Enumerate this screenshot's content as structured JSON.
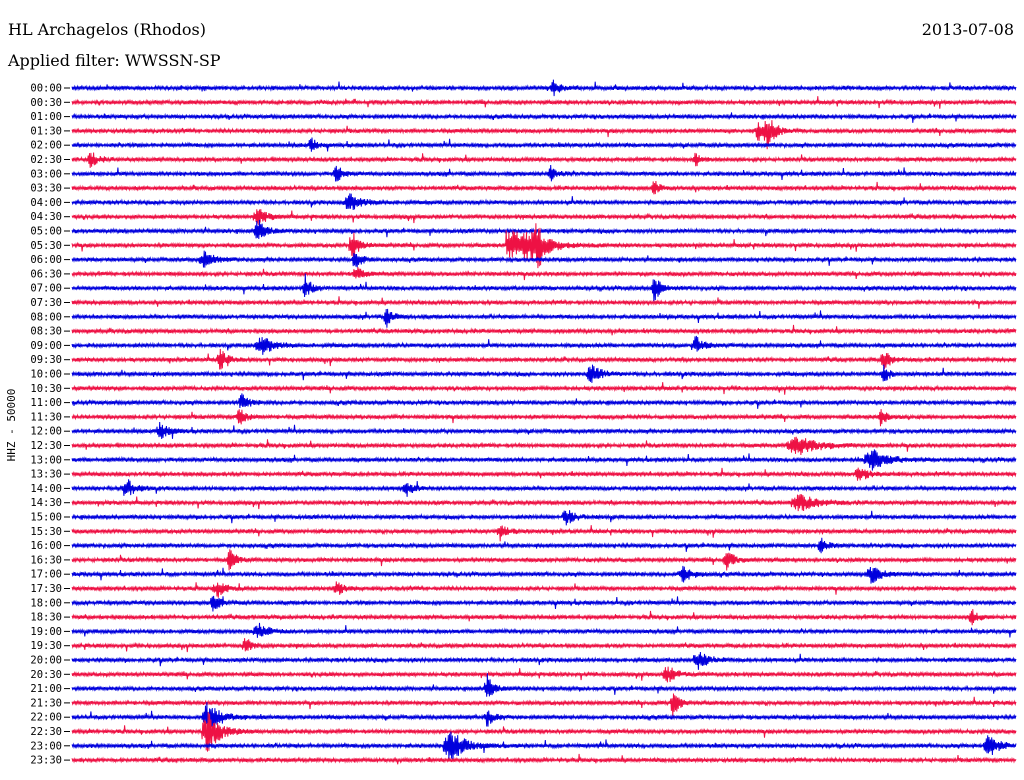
{
  "header": {
    "station": "HL Archagelos (Rhodos)",
    "date": "2013-07-08",
    "filter": "Applied filter: WWSSN-SP"
  },
  "chart_data": {
    "type": "line",
    "variant": "helicorder",
    "ylabel": "HHZ - 50000",
    "row_labels": [
      "00:00",
      "00:30",
      "01:00",
      "01:30",
      "02:00",
      "02:30",
      "03:00",
      "03:30",
      "04:00",
      "04:30",
      "05:00",
      "05:30",
      "06:00",
      "06:30",
      "07:00",
      "07:30",
      "08:00",
      "08:30",
      "09:00",
      "09:30",
      "10:00",
      "10:30",
      "11:00",
      "11:30",
      "12:00",
      "12:30",
      "13:00",
      "13:30",
      "14:00",
      "14:30",
      "15:00",
      "15:30",
      "16:00",
      "16:30",
      "17:00",
      "17:30",
      "18:00",
      "18:30",
      "19:00",
      "19:30",
      "20:00",
      "20:30",
      "21:00",
      "21:30",
      "22:00",
      "22:30",
      "23:00",
      "23:30"
    ],
    "colors": [
      "#0000dd",
      "#ee1144"
    ],
    "minutes_per_row": 30,
    "events": [
      {
        "row": 0,
        "minute": 15.3,
        "amplitude": 9,
        "duration": 0.6
      },
      {
        "row": 3,
        "minute": 22.1,
        "amplitude": 16,
        "duration": 0.8
      },
      {
        "row": 3,
        "minute": 21.8,
        "amplitude": 10,
        "duration": 0.5
      },
      {
        "row": 4,
        "minute": 7.6,
        "amplitude": 8,
        "duration": 0.5
      },
      {
        "row": 5,
        "minute": 0.6,
        "amplitude": 9,
        "duration": 0.6
      },
      {
        "row": 5,
        "minute": 19.8,
        "amplitude": 8,
        "duration": 0.5
      },
      {
        "row": 6,
        "minute": 8.4,
        "amplitude": 9,
        "duration": 0.6
      },
      {
        "row": 6,
        "minute": 15.2,
        "amplitude": 10,
        "duration": 0.6
      },
      {
        "row": 7,
        "minute": 18.5,
        "amplitude": 8,
        "duration": 0.5
      },
      {
        "row": 8,
        "minute": 8.8,
        "amplitude": 9,
        "duration": 1.2
      },
      {
        "row": 9,
        "minute": 5.9,
        "amplitude": 9,
        "duration": 0.8
      },
      {
        "row": 10,
        "minute": 5.9,
        "amplitude": 12,
        "duration": 0.8
      },
      {
        "row": 11,
        "minute": 8.9,
        "amplitude": 14,
        "duration": 0.7
      },
      {
        "row": 11,
        "minute": 14.9,
        "amplitude": 11,
        "duration": 1.6
      },
      {
        "row": 12,
        "minute": 9.0,
        "amplitude": 12,
        "duration": 0.6
      },
      {
        "row": 12,
        "minute": 4.2,
        "amplitude": 8,
        "duration": 1.0
      },
      {
        "row": 13,
        "minute": 9.0,
        "amplitude": 9,
        "duration": 0.6
      },
      {
        "row": 14,
        "minute": 7.4,
        "amplitude": 12,
        "duration": 0.6
      },
      {
        "row": 14,
        "minute": 18.5,
        "amplitude": 14,
        "duration": 0.6
      },
      {
        "row": 16,
        "minute": 10.0,
        "amplitude": 10,
        "duration": 0.6
      },
      {
        "row": 18,
        "minute": 6.0,
        "amplitude": 10,
        "duration": 1.2
      },
      {
        "row": 18,
        "minute": 19.8,
        "amplitude": 9,
        "duration": 0.8
      },
      {
        "row": 19,
        "minute": 4.7,
        "amplitude": 12,
        "duration": 0.6
      },
      {
        "row": 19,
        "minute": 25.8,
        "amplitude": 11,
        "duration": 0.6
      },
      {
        "row": 20,
        "minute": 16.5,
        "amplitude": 10,
        "duration": 1.0
      },
      {
        "row": 20,
        "minute": 25.8,
        "amplitude": 8,
        "duration": 0.6
      },
      {
        "row": 22,
        "minute": 5.4,
        "amplitude": 10,
        "duration": 0.6
      },
      {
        "row": 23,
        "minute": 5.3,
        "amplitude": 11,
        "duration": 0.6
      },
      {
        "row": 23,
        "minute": 25.7,
        "amplitude": 11,
        "duration": 0.6
      },
      {
        "row": 24,
        "minute": 2.8,
        "amplitude": 9,
        "duration": 0.8
      },
      {
        "row": 25,
        "minute": 23.0,
        "amplitude": 10,
        "duration": 2.0
      },
      {
        "row": 26,
        "minute": 25.4,
        "amplitude": 11,
        "duration": 1.5
      },
      {
        "row": 27,
        "minute": 25.0,
        "amplitude": 9,
        "duration": 0.8
      },
      {
        "row": 28,
        "minute": 1.7,
        "amplitude": 11,
        "duration": 0.8
      },
      {
        "row": 28,
        "minute": 10.6,
        "amplitude": 9,
        "duration": 0.6
      },
      {
        "row": 29,
        "minute": 23.1,
        "amplitude": 9,
        "duration": 1.6
      },
      {
        "row": 30,
        "minute": 15.7,
        "amplitude": 9,
        "duration": 0.8
      },
      {
        "row": 31,
        "minute": 13.6,
        "amplitude": 9,
        "duration": 0.7
      },
      {
        "row": 32,
        "minute": 23.8,
        "amplitude": 9,
        "duration": 0.6
      },
      {
        "row": 33,
        "minute": 5.0,
        "amplitude": 11,
        "duration": 0.6
      },
      {
        "row": 33,
        "minute": 20.8,
        "amplitude": 9,
        "duration": 0.8
      },
      {
        "row": 34,
        "minute": 19.4,
        "amplitude": 10,
        "duration": 0.8
      },
      {
        "row": 34,
        "minute": 25.4,
        "amplitude": 9,
        "duration": 1.0
      },
      {
        "row": 35,
        "minute": 4.6,
        "amplitude": 9,
        "duration": 0.8
      },
      {
        "row": 35,
        "minute": 8.4,
        "amplitude": 9,
        "duration": 0.6
      },
      {
        "row": 36,
        "minute": 4.5,
        "amplitude": 9,
        "duration": 0.6
      },
      {
        "row": 37,
        "minute": 28.6,
        "amplitude": 9,
        "duration": 0.6
      },
      {
        "row": 38,
        "minute": 5.9,
        "amplitude": 8,
        "duration": 1.0
      },
      {
        "row": 39,
        "minute": 5.5,
        "amplitude": 8,
        "duration": 0.6
      },
      {
        "row": 40,
        "minute": 19.9,
        "amplitude": 9,
        "duration": 1.0
      },
      {
        "row": 41,
        "minute": 18.9,
        "amplitude": 8,
        "duration": 1.0
      },
      {
        "row": 42,
        "minute": 13.2,
        "amplitude": 14,
        "duration": 0.6
      },
      {
        "row": 43,
        "minute": 19.1,
        "amplitude": 14,
        "duration": 0.6
      },
      {
        "row": 44,
        "minute": 4.3,
        "amplitude": 16,
        "duration": 1.2
      },
      {
        "row": 44,
        "minute": 13.2,
        "amplitude": 10,
        "duration": 0.6
      },
      {
        "row": 45,
        "minute": 4.3,
        "amplitude": 22,
        "duration": 1.2
      },
      {
        "row": 46,
        "minute": 12.0,
        "amplitude": 16,
        "duration": 1.4
      },
      {
        "row": 46,
        "minute": 29.1,
        "amplitude": 12,
        "duration": 1.0
      }
    ],
    "swarm": {
      "row": 11,
      "minute_start": 13.8,
      "minute_end": 14.9,
      "amplitude": 18
    }
  }
}
